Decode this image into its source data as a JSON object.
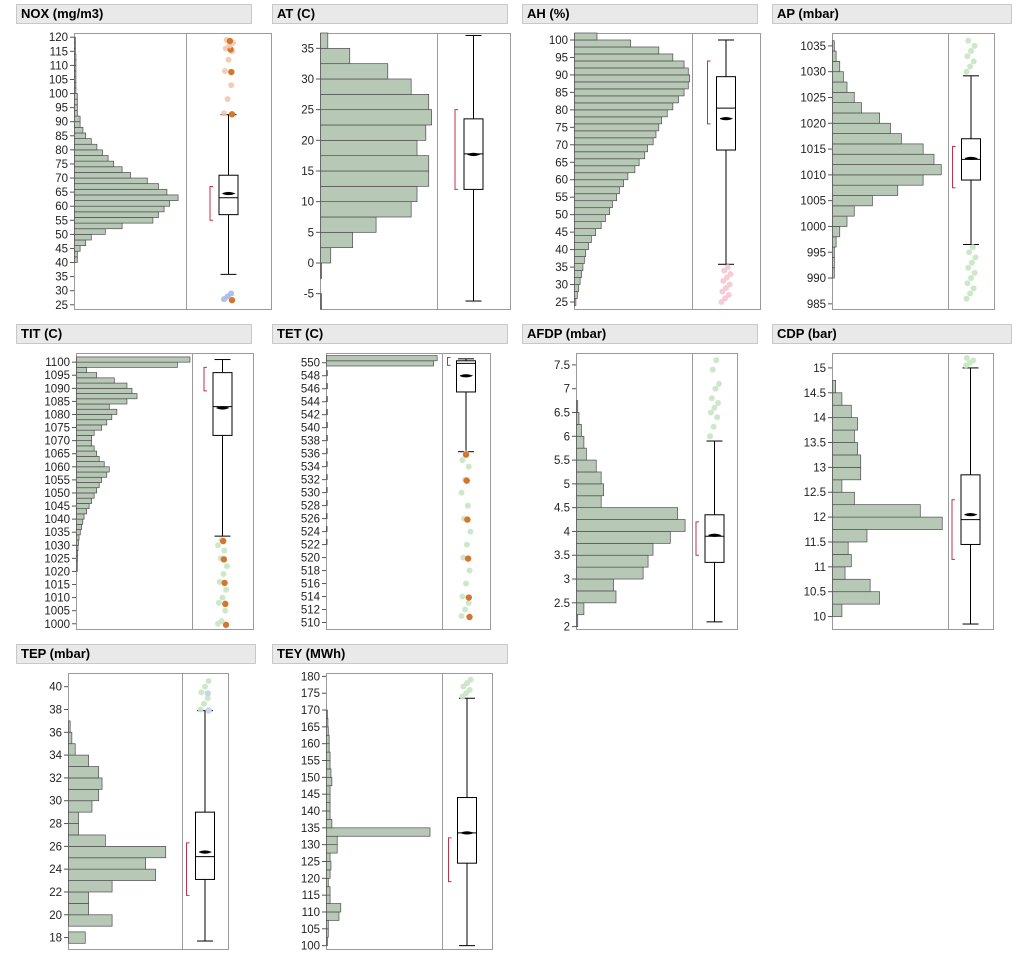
{
  "chart_data": [
    {
      "type": "bar",
      "title": "NOX (mg/m3)",
      "yticks": [
        25,
        30,
        35,
        40,
        45,
        50,
        55,
        60,
        65,
        70,
        75,
        80,
        85,
        90,
        95,
        100,
        105,
        110,
        115,
        120
      ],
      "bins": [
        [
          40,
          1
        ],
        [
          42,
          1
        ],
        [
          44,
          2
        ],
        [
          46,
          4
        ],
        [
          48,
          6
        ],
        [
          50,
          11
        ],
        [
          52,
          17
        ],
        [
          54,
          28
        ],
        [
          56,
          30
        ],
        [
          58,
          32
        ],
        [
          60,
          34
        ],
        [
          62,
          37
        ],
        [
          64,
          33
        ],
        [
          66,
          30
        ],
        [
          68,
          26
        ],
        [
          70,
          20
        ],
        [
          72,
          17
        ],
        [
          74,
          14
        ],
        [
          76,
          12
        ],
        [
          78,
          10
        ],
        [
          80,
          8
        ],
        [
          82,
          6
        ],
        [
          84,
          4
        ],
        [
          86,
          3
        ],
        [
          88,
          2
        ],
        [
          90,
          2
        ],
        [
          92,
          1
        ],
        [
          94,
          1
        ],
        [
          96,
          1
        ],
        [
          98,
          1
        ],
        [
          100,
          0.5
        ],
        [
          102,
          0.5
        ],
        [
          104,
          0.5
        ],
        [
          106,
          0.5
        ],
        [
          108,
          0.5
        ],
        [
          110,
          0.5
        ],
        [
          112,
          0.5
        ],
        [
          114,
          0.3
        ],
        [
          116,
          0.3
        ],
        [
          118,
          0.3
        ]
      ],
      "box": {
        "min": 35.8,
        "q1": 57,
        "median": 63,
        "q3": 71,
        "max": 92.5,
        "mean": 64.5,
        "ci": [
          55,
          67
        ]
      },
      "outliers_high": [
        93,
        98,
        103,
        108,
        112,
        115,
        116,
        117,
        118,
        119
      ],
      "outliers_low": [
        27,
        28,
        29
      ]
    },
    {
      "type": "bar",
      "title": "AT (C)",
      "yticks": [
        -5,
        0,
        5,
        10,
        15,
        20,
        25,
        30,
        35
      ],
      "bins": [
        [
          -7.5,
          0.4
        ],
        [
          -2.5,
          0.4
        ],
        [
          0,
          3.5
        ],
        [
          2.5,
          11
        ],
        [
          5,
          19
        ],
        [
          7.5,
          31
        ],
        [
          10,
          33
        ],
        [
          12.5,
          37
        ],
        [
          15,
          37
        ],
        [
          17.5,
          33
        ],
        [
          20,
          36
        ],
        [
          22.5,
          38
        ],
        [
          25,
          37
        ],
        [
          27.5,
          31
        ],
        [
          30,
          23
        ],
        [
          32.5,
          10
        ],
        [
          35,
          2.5
        ]
      ],
      "box": {
        "min": -6.2,
        "q1": 12,
        "median": 17.8,
        "q3": 23.5,
        "max": 37.1,
        "mean": 17.7,
        "ci": [
          12,
          25
        ]
      }
    },
    {
      "type": "bar",
      "title": "AH (%)",
      "yticks": [
        25,
        30,
        35,
        40,
        45,
        50,
        55,
        60,
        65,
        70,
        75,
        80,
        85,
        90,
        95,
        100
      ],
      "bins": [
        [
          24,
          0.5
        ],
        [
          26,
          1
        ],
        [
          28,
          1.5
        ],
        [
          30,
          2
        ],
        [
          32,
          2.5
        ],
        [
          34,
          3
        ],
        [
          36,
          3.5
        ],
        [
          38,
          4
        ],
        [
          40,
          5
        ],
        [
          42,
          6
        ],
        [
          44,
          7.5
        ],
        [
          46,
          9.5
        ],
        [
          48,
          11
        ],
        [
          50,
          12.5
        ],
        [
          52,
          13.5
        ],
        [
          54,
          15
        ],
        [
          56,
          16
        ],
        [
          58,
          17.5
        ],
        [
          60,
          19
        ],
        [
          62,
          21.5
        ],
        [
          64,
          23
        ],
        [
          66,
          25
        ],
        [
          68,
          26
        ],
        [
          70,
          28
        ],
        [
          72,
          29
        ],
        [
          74,
          30
        ],
        [
          76,
          31
        ],
        [
          78,
          33
        ],
        [
          80,
          35
        ],
        [
          82,
          37
        ],
        [
          84,
          39
        ],
        [
          86,
          40.5
        ],
        [
          88,
          41
        ],
        [
          90,
          40.5
        ],
        [
          92,
          39
        ],
        [
          94,
          35
        ],
        [
          96,
          30
        ],
        [
          98,
          20
        ],
        [
          100,
          8
        ]
      ],
      "box": {
        "min": 35.8,
        "q1": 68.5,
        "median": 80.5,
        "q3": 89.5,
        "max": 100,
        "mean": 77.5,
        "ci": [
          76,
          94
        ]
      },
      "outliers_low": [
        25,
        26,
        27,
        28,
        29,
        30,
        31,
        32,
        33,
        34,
        35
      ]
    },
    {
      "type": "bar",
      "title": "AP (mbar)",
      "yticks": [
        985,
        990,
        995,
        1000,
        1005,
        1010,
        1015,
        1020,
        1025,
        1030,
        1035
      ],
      "bins": [
        [
          990,
          0.5
        ],
        [
          992,
          0.5
        ],
        [
          994,
          0.5
        ],
        [
          996,
          1
        ],
        [
          998,
          2
        ],
        [
          1000,
          4
        ],
        [
          1002,
          6
        ],
        [
          1004,
          11
        ],
        [
          1006,
          18
        ],
        [
          1008,
          25
        ],
        [
          1010,
          30
        ],
        [
          1012,
          28
        ],
        [
          1014,
          25
        ],
        [
          1016,
          19
        ],
        [
          1018,
          16
        ],
        [
          1020,
          13
        ],
        [
          1022,
          8
        ],
        [
          1024,
          6
        ],
        [
          1026,
          4
        ],
        [
          1028,
          3
        ],
        [
          1030,
          2
        ],
        [
          1032,
          1
        ],
        [
          1034,
          0.5
        ]
      ],
      "box": {
        "min": 996.5,
        "q1": 1009,
        "median": 1013,
        "q3": 1017,
        "max": 1029.2,
        "mean": 1013.2,
        "ci": [
          1007.5,
          1015.5
        ]
      },
      "outliers_high": [
        1030,
        1031,
        1032,
        1033,
        1034,
        1035,
        1036
      ],
      "outliers_low": [
        986,
        987,
        988,
        989,
        990,
        991,
        992,
        993,
        994,
        995,
        996
      ]
    },
    {
      "type": "bar",
      "title": "TIT (C)",
      "yticks": [
        1000,
        1005,
        1010,
        1015,
        1020,
        1025,
        1030,
        1035,
        1040,
        1045,
        1050,
        1055,
        1060,
        1065,
        1070,
        1075,
        1080,
        1085,
        1090,
        1095,
        1100
      ],
      "bins": [
        [
          1020,
          0.3
        ],
        [
          1022,
          0.3
        ],
        [
          1024,
          0.4
        ],
        [
          1026,
          0.5
        ],
        [
          1028,
          0.6
        ],
        [
          1030,
          0.8
        ],
        [
          1032,
          1
        ],
        [
          1034,
          1.5
        ],
        [
          1036,
          2
        ],
        [
          1038,
          2.5
        ],
        [
          1040,
          3
        ],
        [
          1042,
          4
        ],
        [
          1044,
          5
        ],
        [
          1046,
          6
        ],
        [
          1048,
          7
        ],
        [
          1050,
          8
        ],
        [
          1052,
          9
        ],
        [
          1054,
          10
        ],
        [
          1056,
          12
        ],
        [
          1058,
          13
        ],
        [
          1060,
          11
        ],
        [
          1062,
          9
        ],
        [
          1064,
          8
        ],
        [
          1066,
          7
        ],
        [
          1068,
          6
        ],
        [
          1070,
          6
        ],
        [
          1072,
          7
        ],
        [
          1074,
          10
        ],
        [
          1076,
          12
        ],
        [
          1078,
          14
        ],
        [
          1080,
          16
        ],
        [
          1082,
          13
        ],
        [
          1084,
          20
        ],
        [
          1086,
          24
        ],
        [
          1088,
          22
        ],
        [
          1090,
          20
        ],
        [
          1092,
          15
        ],
        [
          1094,
          8
        ],
        [
          1096,
          4
        ],
        [
          1098,
          40
        ],
        [
          1100,
          45
        ]
      ],
      "box": {
        "min": 1033.5,
        "q1": 1072,
        "median": 1083,
        "q3": 1096,
        "max": 1101,
        "mean": 1082.5,
        "ci": [
          1089,
          1098
        ]
      },
      "outliers_low": [
        1000,
        1001,
        1005,
        1008,
        1010,
        1013,
        1016,
        1019,
        1022,
        1025,
        1028,
        1030,
        1032
      ]
    },
    {
      "type": "bar",
      "title": "TET (C)",
      "yticks": [
        510,
        512,
        514,
        516,
        518,
        520,
        522,
        524,
        526,
        528,
        530,
        532,
        534,
        536,
        538,
        540,
        542,
        544,
        546,
        548,
        550
      ],
      "bins": [
        [
          522,
          0.2
        ],
        [
          524,
          0.3
        ],
        [
          526,
          0.3
        ],
        [
          528,
          0.4
        ],
        [
          530,
          0.4
        ],
        [
          532,
          0.4
        ],
        [
          534,
          0.4
        ],
        [
          536,
          0.4
        ],
        [
          538,
          0.5
        ],
        [
          540,
          0.5
        ],
        [
          542,
          0.5
        ],
        [
          544,
          0.5
        ],
        [
          546,
          0.5
        ],
        [
          548,
          0.5
        ],
        [
          549.5,
          60
        ],
        [
          550.3,
          62
        ]
      ],
      "box": {
        "min": 536.3,
        "q1": 545.5,
        "median": 549.9,
        "q3": 550.3,
        "max": 550.6,
        "mean": 548,
        "ci": [
          549.6,
          550.8
        ]
      },
      "outliers_low": [
        511,
        512,
        513,
        514,
        516,
        518,
        520,
        522,
        524,
        526,
        528,
        530,
        532,
        534,
        535,
        536
      ]
    },
    {
      "type": "bar",
      "title": "AFDP (mbar)",
      "yticks": [
        2,
        2.5,
        3,
        3.5,
        4,
        4.5,
        5,
        5.5,
        6,
        6.5,
        7,
        7.5
      ],
      "bins": [
        [
          2,
          0.5
        ],
        [
          2.25,
          3
        ],
        [
          2.5,
          16
        ],
        [
          2.75,
          15
        ],
        [
          3,
          27
        ],
        [
          3.25,
          29
        ],
        [
          3.5,
          31
        ],
        [
          3.75,
          38
        ],
        [
          4,
          44
        ],
        [
          4.25,
          41
        ],
        [
          4.5,
          10
        ],
        [
          4.75,
          11
        ],
        [
          5,
          10
        ],
        [
          5.25,
          8
        ],
        [
          5.5,
          4
        ],
        [
          5.75,
          3
        ],
        [
          6,
          2
        ],
        [
          6.25,
          1
        ],
        [
          6.5,
          0.5
        ]
      ],
      "box": {
        "min": 2.1,
        "q1": 3.35,
        "median": 3.9,
        "q3": 4.35,
        "max": 5.9,
        "mean": 3.92,
        "ci": [
          3.5,
          4.2
        ]
      },
      "outliers_high": [
        6,
        6.2,
        6.4,
        6.5,
        6.6,
        6.7,
        6.8,
        7,
        7.1,
        7.4,
        7.6
      ]
    },
    {
      "type": "bar",
      "title": "CDP (bar)",
      "yticks": [
        10,
        10.5,
        11,
        11.5,
        12,
        12.5,
        13,
        13.5,
        14,
        14.5,
        15
      ],
      "bins": [
        [
          10,
          3
        ],
        [
          10.25,
          15
        ],
        [
          10.5,
          12
        ],
        [
          10.75,
          4
        ],
        [
          11,
          6
        ],
        [
          11.25,
          5
        ],
        [
          11.5,
          11
        ],
        [
          11.75,
          35
        ],
        [
          12,
          28
        ],
        [
          12.25,
          7
        ],
        [
          12.5,
          3
        ],
        [
          12.75,
          9
        ],
        [
          13,
          9
        ],
        [
          13.25,
          8
        ],
        [
          13.5,
          7
        ],
        [
          13.75,
          8
        ],
        [
          14,
          6
        ],
        [
          14.25,
          3
        ],
        [
          14.5,
          1
        ]
      ],
      "box": {
        "min": 9.85,
        "q1": 11.45,
        "median": 11.95,
        "q3": 12.85,
        "max": 15,
        "mean": 12.05,
        "ci": [
          11.15,
          12.35
        ]
      },
      "outliers_high": [
        15.05,
        15.1,
        15.15,
        15.2
      ]
    },
    {
      "type": "bar",
      "title": "TEP (mbar)",
      "yticks": [
        18,
        20,
        22,
        24,
        26,
        28,
        30,
        32,
        34,
        36,
        38,
        40
      ],
      "bins": [
        [
          17.5,
          5
        ],
        [
          19,
          13
        ],
        [
          20,
          6
        ],
        [
          21,
          6
        ],
        [
          22,
          13
        ],
        [
          23,
          26
        ],
        [
          24,
          23
        ],
        [
          25,
          29
        ],
        [
          26,
          11
        ],
        [
          27,
          3
        ],
        [
          28,
          3
        ],
        [
          29,
          7
        ],
        [
          30,
          9
        ],
        [
          31,
          10
        ],
        [
          32,
          9
        ],
        [
          33,
          6
        ],
        [
          34,
          2
        ],
        [
          35,
          1
        ],
        [
          36,
          0.5
        ]
      ],
      "box": {
        "min": 17.7,
        "q1": 23.1,
        "median": 25.1,
        "q3": 29,
        "max": 37.9,
        "mean": 25.5,
        "ci": [
          21.7,
          26.3
        ]
      },
      "outliers_high": [
        38,
        38.5,
        39,
        39.5,
        40,
        40.5
      ]
    },
    {
      "type": "bar",
      "title": "TEY (MWh)",
      "yticks": [
        100,
        105,
        110,
        115,
        120,
        125,
        130,
        135,
        140,
        145,
        150,
        155,
        160,
        165,
        170,
        175,
        180
      ],
      "bins": [
        [
          100,
          0.5
        ],
        [
          102.5,
          1
        ],
        [
          105,
          1
        ],
        [
          107.5,
          7
        ],
        [
          110,
          8
        ],
        [
          112.5,
          2
        ],
        [
          115,
          2
        ],
        [
          117.5,
          1
        ],
        [
          120,
          2
        ],
        [
          122.5,
          2.5
        ],
        [
          125,
          2
        ],
        [
          127.5,
          6
        ],
        [
          130,
          6
        ],
        [
          132.5,
          58
        ],
        [
          135,
          3
        ],
        [
          137.5,
          2
        ],
        [
          140,
          2
        ],
        [
          142.5,
          2
        ],
        [
          145,
          2
        ],
        [
          147.5,
          3
        ],
        [
          150,
          2.5
        ],
        [
          152.5,
          2
        ],
        [
          155,
          2
        ],
        [
          157.5,
          1.5
        ],
        [
          160,
          1.5
        ],
        [
          162.5,
          1
        ],
        [
          165,
          0.8
        ],
        [
          167.5,
          0.5
        ]
      ],
      "box": {
        "min": 100,
        "q1": 124.5,
        "median": 133.5,
        "q3": 144,
        "max": 173.5,
        "mean": 133.5,
        "ci": [
          119,
          132
        ]
      },
      "outliers_high": [
        174,
        175,
        176,
        177,
        178,
        179
      ]
    }
  ]
}
